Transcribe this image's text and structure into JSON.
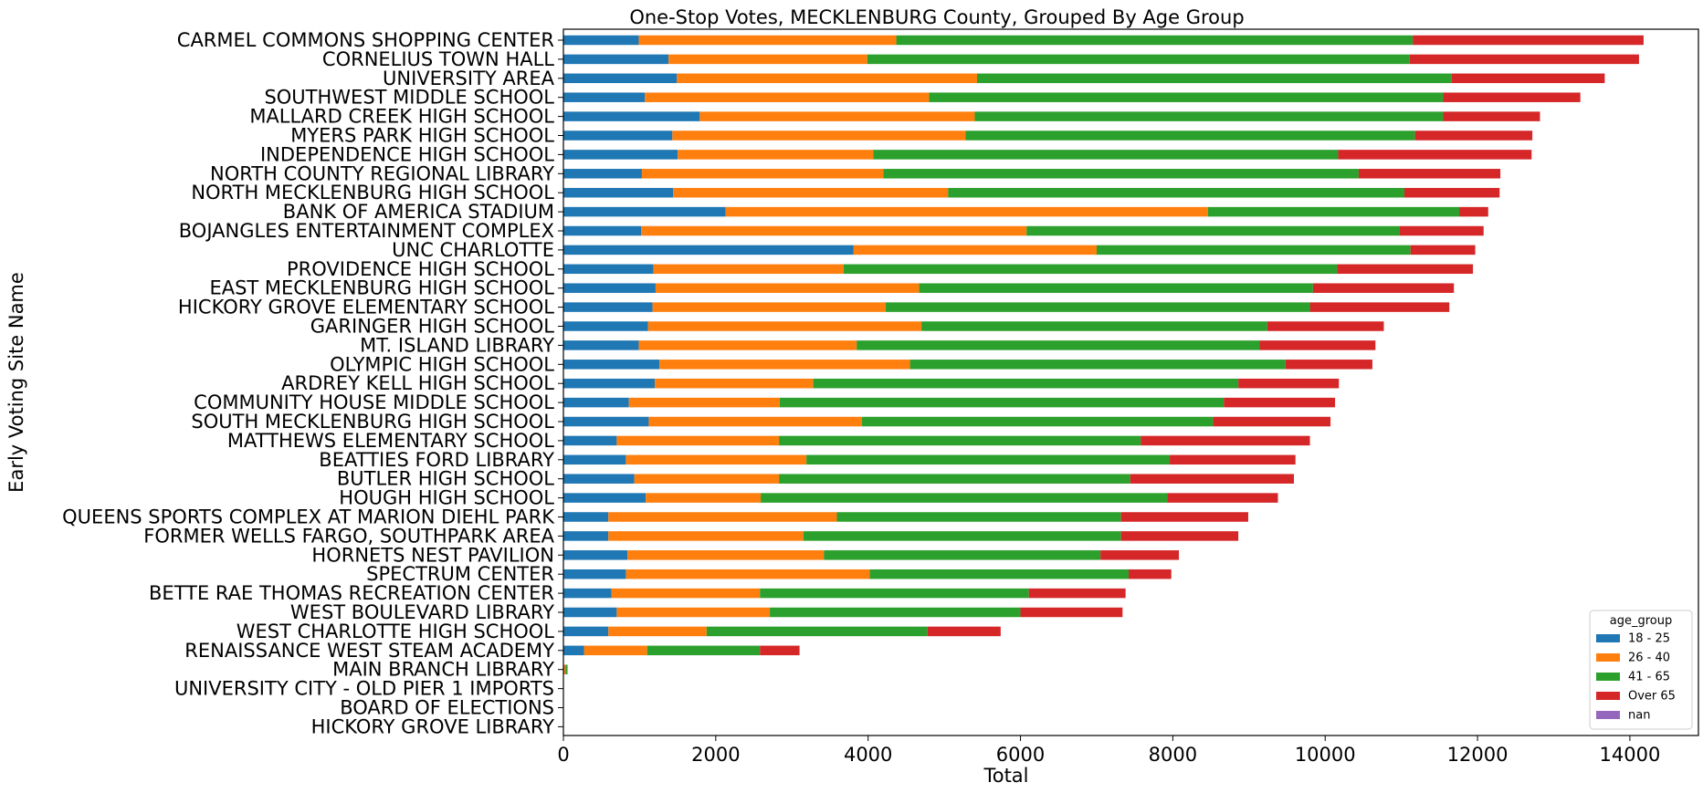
{
  "chart_data": {
    "type": "bar",
    "orientation": "horizontal",
    "stacked": true,
    "title": "One-Stop Votes, MECKLENBURG County, Grouped By Age Group",
    "xlabel": "Total",
    "ylabel": "Early Voting Site Name",
    "xlim": [
      0,
      14900
    ],
    "xticks": [
      0,
      2000,
      4000,
      6000,
      8000,
      10000,
      12000,
      14000
    ],
    "grid": false,
    "legend": {
      "title": "age_group",
      "placement": "bottom-right"
    },
    "categories": [
      "CARMEL COMMONS SHOPPING CENTER",
      "CORNELIUS TOWN HALL",
      "UNIVERSITY AREA",
      "SOUTHWEST MIDDLE SCHOOL",
      "MALLARD CREEK HIGH SCHOOL",
      "MYERS PARK HIGH SCHOOL",
      "INDEPENDENCE HIGH SCHOOL",
      "NORTH COUNTY REGIONAL LIBRARY",
      "NORTH MECKLENBURG HIGH SCHOOL",
      "BANK OF AMERICA STADIUM",
      "BOJANGLES ENTERTAINMENT COMPLEX",
      "UNC CHARLOTTE",
      "PROVIDENCE HIGH SCHOOL",
      "EAST MECKLENBURG HIGH SCHOOL",
      "HICKORY GROVE ELEMENTARY SCHOOL",
      "GARINGER HIGH SCHOOL",
      "MT. ISLAND LIBRARY",
      "OLYMPIC HIGH SCHOOL",
      "ARDREY KELL HIGH SCHOOL",
      "COMMUNITY HOUSE MIDDLE SCHOOL",
      "SOUTH MECKLENBURG HIGH SCHOOL",
      "MATTHEWS ELEMENTARY SCHOOL",
      "BEATTIES FORD LIBRARY",
      "BUTLER HIGH SCHOOL",
      "HOUGH HIGH SCHOOL",
      "QUEENS SPORTS COMPLEX AT MARION DIEHL PARK",
      "FORMER WELLS FARGO, SOUTHPARK AREA",
      "HORNETS NEST PAVILION",
      "SPECTRUM CENTER",
      "BETTE RAE THOMAS RECREATION CENTER",
      "WEST BOULEVARD LIBRARY",
      "WEST CHARLOTTE HIGH SCHOOL",
      "RENAISSANCE WEST STEAM ACADEMY",
      "MAIN BRANCH LIBRARY",
      "UNIVERSITY CITY - OLD PIER 1 IMPORTS",
      "BOARD OF ELECTIONS",
      "HICKORY GROVE LIBRARY"
    ],
    "series": [
      {
        "name": "18 - 25",
        "color": "#1f77b4",
        "values": [
          990,
          1380,
          1490,
          1070,
          1790,
          1430,
          1500,
          1030,
          1440,
          2130,
          1020,
          3810,
          1180,
          1210,
          1170,
          1110,
          990,
          1260,
          1200,
          860,
          1120,
          700,
          820,
          930,
          1080,
          590,
          590,
          840,
          820,
          630,
          700,
          590,
          270,
          10,
          0,
          0,
          0
        ]
      },
      {
        "name": "26 - 40",
        "color": "#ff7f0e",
        "values": [
          3380,
          2610,
          3940,
          3730,
          3610,
          3850,
          2570,
          3170,
          3610,
          6330,
          5060,
          3190,
          2500,
          3460,
          3060,
          3590,
          2860,
          3290,
          2080,
          1980,
          2800,
          2130,
          2370,
          1900,
          1510,
          3000,
          2560,
          2580,
          3200,
          1950,
          2010,
          1290,
          830,
          20,
          0,
          0,
          0
        ]
      },
      {
        "name": "41 - 65",
        "color": "#2ca02c",
        "values": [
          6780,
          7120,
          6230,
          6750,
          6150,
          5900,
          6100,
          6240,
          5990,
          3300,
          4900,
          4120,
          6480,
          5170,
          5570,
          4540,
          5290,
          4930,
          5580,
          5830,
          4610,
          4750,
          4770,
          4610,
          5340,
          3730,
          4170,
          3630,
          3400,
          3530,
          3290,
          2900,
          1480,
          20,
          0,
          0,
          0
        ]
      },
      {
        "name": "Over 65",
        "color": "#d62728",
        "values": [
          3030,
          3010,
          2010,
          1800,
          1270,
          1540,
          2540,
          1860,
          1250,
          380,
          1100,
          850,
          1780,
          1850,
          1830,
          1530,
          1520,
          1140,
          1320,
          1460,
          1540,
          2220,
          1650,
          2150,
          1450,
          1670,
          1540,
          1030,
          560,
          1270,
          1340,
          960,
          520,
          5,
          0,
          0,
          0
        ]
      },
      {
        "name": "nan",
        "color": "#9467bd",
        "values": [
          0,
          0,
          0,
          0,
          0,
          0,
          0,
          0,
          0,
          0,
          0,
          0,
          0,
          0,
          0,
          0,
          0,
          0,
          0,
          0,
          0,
          0,
          0,
          0,
          0,
          0,
          0,
          0,
          0,
          0,
          0,
          0,
          0,
          0,
          0,
          0,
          0
        ]
      }
    ]
  }
}
